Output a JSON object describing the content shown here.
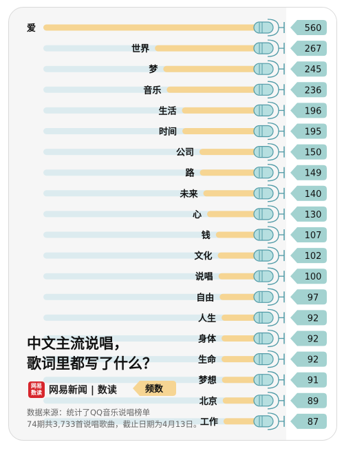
{
  "title": "中文主流说唱，\n歌词里都写了什么？",
  "brand": {
    "logo_text": "网易\n数读",
    "name": "网易新闻 | 数读"
  },
  "legend": {
    "frequency_label": "频数"
  },
  "source": "数据来源：统计了QQ音乐说唱榜单\n74期共3,733首说唱歌曲，截止日期为4月13日。",
  "colors": {
    "bar": "#f6d593",
    "track": "#dcebef",
    "mic": "#b6dfe0",
    "mic_stroke": "#4f9aa6",
    "badge": "#a3d2d0",
    "text": "#111111",
    "card_bg": "#f6f6f6",
    "brand": "#d7262c"
  },
  "icons": {
    "bar_end": "microphone-icon",
    "logo": "netease-news-logo"
  },
  "chart_data": {
    "type": "bar",
    "orientation": "horizontal",
    "title": "中文主流说唱，歌词里都写了什么？",
    "xlabel": "",
    "ylabel": "",
    "value_label": "频数",
    "xlim": [
      0,
      560
    ],
    "grid": false,
    "legend": "none",
    "categories": [
      "爱",
      "世界",
      "梦",
      "音乐",
      "生活",
      "时间",
      "公司",
      "路",
      "未来",
      "心",
      "钱",
      "文化",
      "说唱",
      "自由",
      "人生",
      "身体",
      "生命",
      "梦想",
      "北京",
      "工作"
    ],
    "values": [
      560,
      267,
      245,
      236,
      196,
      195,
      150,
      149,
      140,
      130,
      107,
      102,
      100,
      97,
      92,
      92,
      92,
      91,
      89,
      87
    ]
  }
}
